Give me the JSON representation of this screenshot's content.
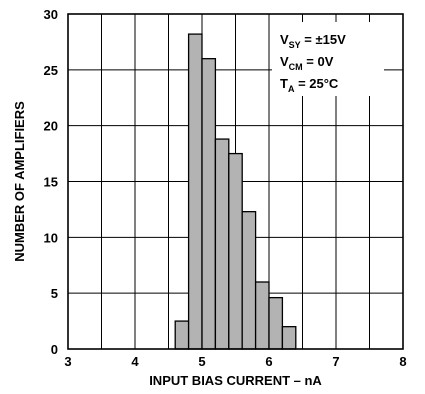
{
  "chart_data": {
    "type": "bar",
    "xlabel": "INPUT BIAS CURRENT – nA",
    "ylabel": "NUMBER OF AMPLIFIERS",
    "xlim": [
      3,
      8
    ],
    "ylim": [
      0,
      30
    ],
    "x_ticks": [
      "3",
      "4",
      "5",
      "6",
      "7",
      "8"
    ],
    "y_ticks": [
      "0",
      "5",
      "10",
      "15",
      "20",
      "25",
      "30"
    ],
    "grid": true,
    "bar_color": "#b3b3b3",
    "bin_width": 0.2,
    "bins": [
      {
        "x_start": 4.6,
        "x_end": 4.8,
        "value": 2.5
      },
      {
        "x_start": 4.8,
        "x_end": 5.0,
        "value": 28.2
      },
      {
        "x_start": 5.0,
        "x_end": 5.2,
        "value": 26.0
      },
      {
        "x_start": 5.2,
        "x_end": 5.4,
        "value": 18.8
      },
      {
        "x_start": 5.4,
        "x_end": 5.6,
        "value": 17.5
      },
      {
        "x_start": 5.6,
        "x_end": 5.8,
        "value": 12.3
      },
      {
        "x_start": 5.8,
        "x_end": 6.0,
        "value": 6.0
      },
      {
        "x_start": 6.0,
        "x_end": 6.2,
        "value": 4.6
      },
      {
        "x_start": 6.2,
        "x_end": 6.4,
        "value": 2.0
      }
    ],
    "legend": {
      "placement": "top-right",
      "lines": [
        {
          "main": "V",
          "sub": "SY",
          "rest": " = ±15V"
        },
        {
          "main": "V",
          "sub": "CM",
          "rest": " = 0V"
        },
        {
          "main": "T",
          "sub": "A",
          "rest": " = 25°C"
        }
      ]
    }
  }
}
